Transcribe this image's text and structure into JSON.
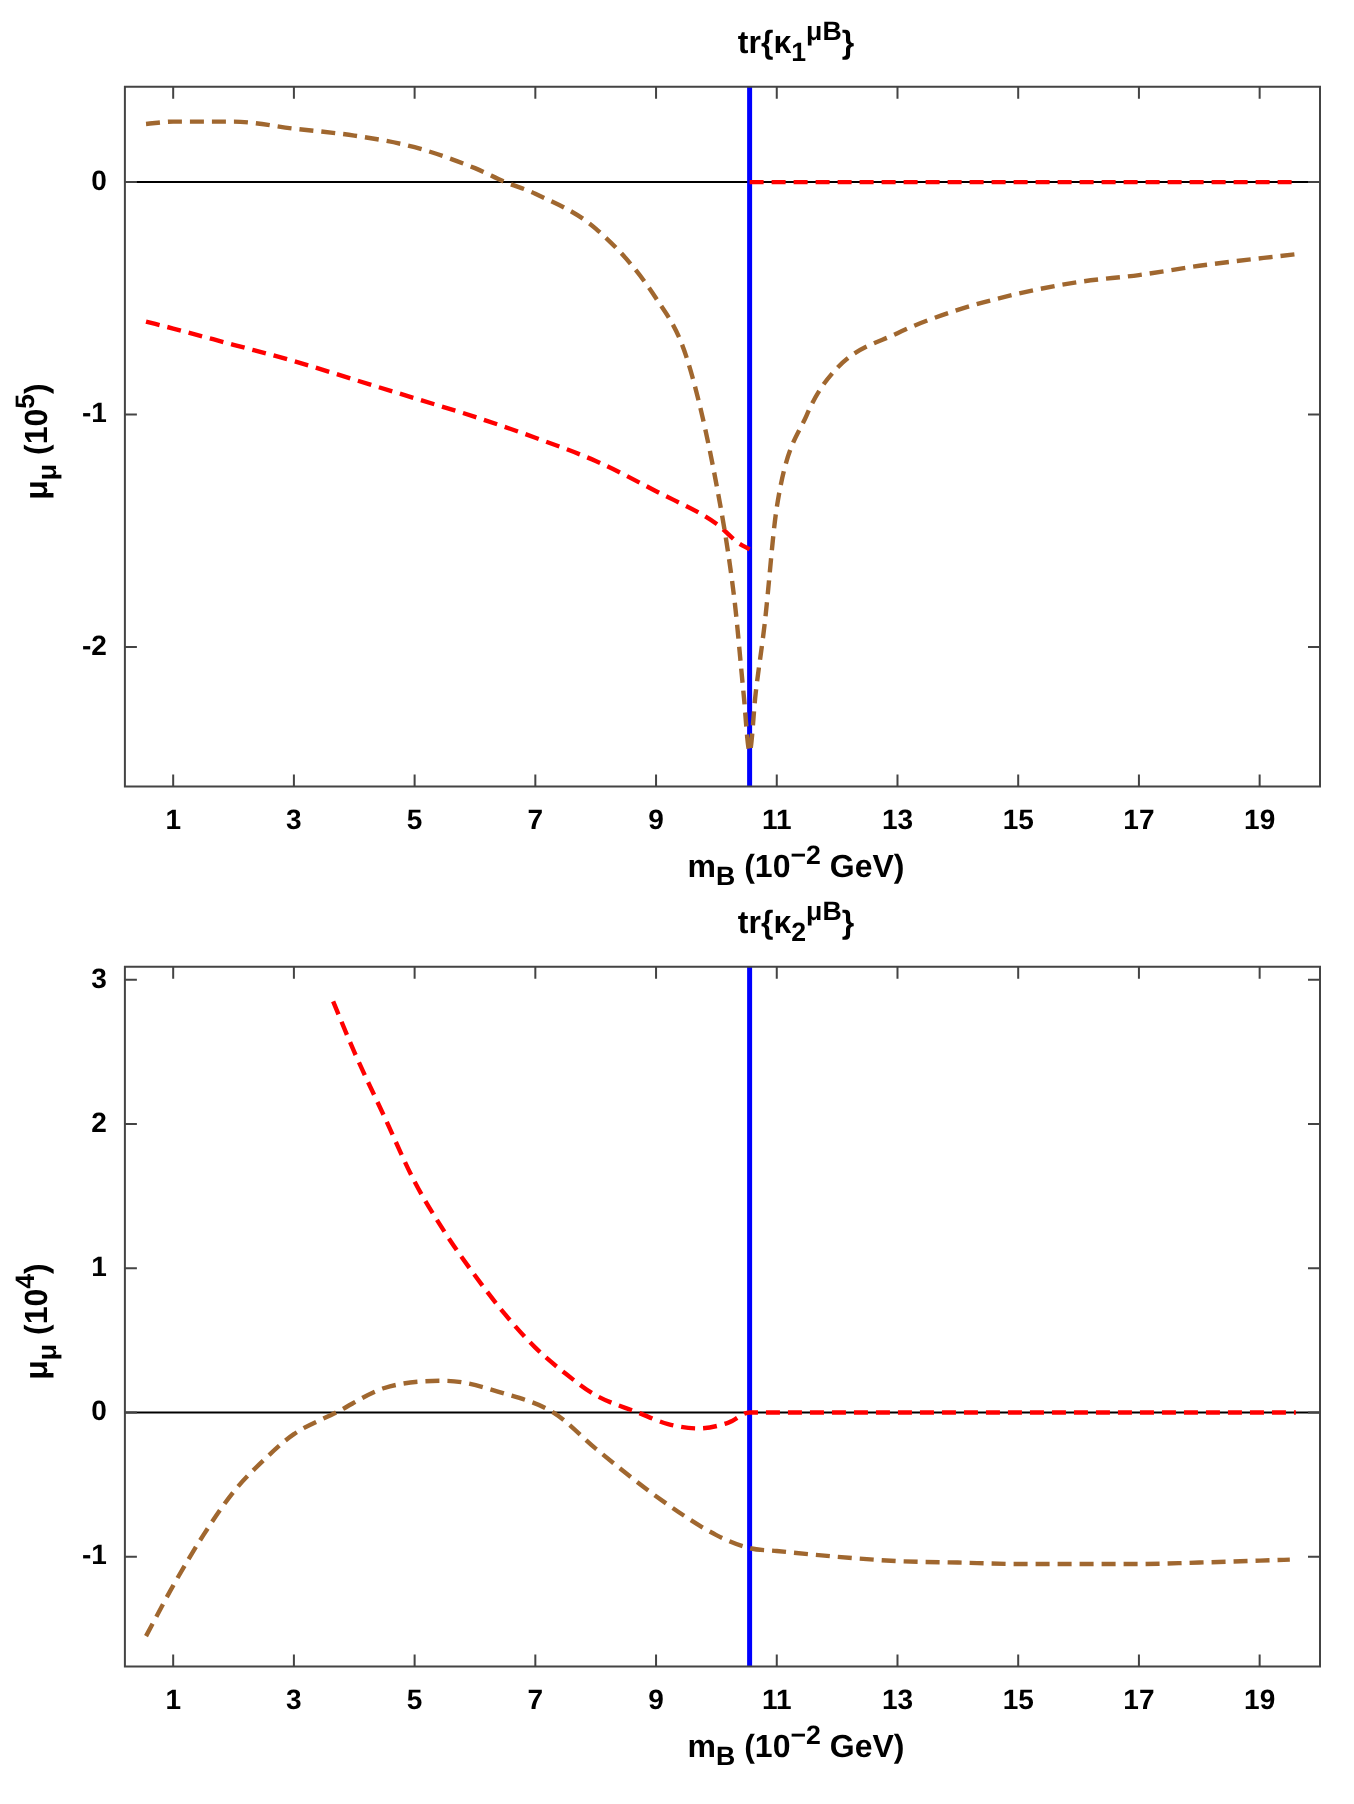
{
  "chart_data": [
    {
      "type": "line",
      "title": "tr{κ$_{1}$$^{μB}$}",
      "xlabel": "m$_{B}$ (10$^{−2}$  GeV)",
      "ylabel": "μ$_{μ}$ (10$^{5}$)",
      "xlim": [
        0.2,
        20
      ],
      "xticks": [
        1,
        3,
        5,
        7,
        9,
        11,
        13,
        15,
        17,
        19
      ],
      "ylim": [
        -2.6,
        0.41
      ],
      "yticks": [
        -2,
        -1,
        0
      ],
      "grid": false,
      "legend": false,
      "marker": "none",
      "ref_lines": [
        {
          "axis": "y",
          "value": 0,
          "color": "#000000",
          "line_style": "solid"
        },
        {
          "axis": "x",
          "value": 10.55,
          "color": "#0000ff",
          "line_style": "solid"
        }
      ],
      "series": [
        {
          "color": "#a0672f",
          "line_style": "dashed",
          "x": [
            0.55,
            1,
            1.5,
            2,
            3,
            4,
            5,
            6,
            6.5,
            7,
            8,
            9,
            9.5,
            10,
            10.3,
            10.45,
            10.55,
            10.65,
            10.8,
            11,
            11.5,
            12,
            13,
            14,
            15,
            16,
            17,
            18,
            19.6
          ],
          "values": [
            0.25,
            0.26,
            0.26,
            0.26,
            0.23,
            0.2,
            0.15,
            0.06,
            0,
            -0.05,
            -0.2,
            -0.5,
            -0.75,
            -1.3,
            -1.8,
            -2.2,
            -2.45,
            -2.2,
            -1.9,
            -1.4,
            -1.0,
            -0.8,
            -0.65,
            -0.55,
            -0.48,
            -0.43,
            -0.4,
            -0.36,
            -0.31
          ]
        },
        {
          "color": "#ff0000",
          "line_style": "dashed",
          "x": [
            0.55,
            1,
            2,
            3,
            4,
            5,
            6,
            7,
            8,
            9,
            10,
            10.35,
            10.55
          ],
          "values": [
            -0.6,
            -0.63,
            -0.7,
            -0.77,
            -0.85,
            -0.93,
            -1.01,
            -1.1,
            -1.2,
            -1.33,
            -1.47,
            -1.55,
            -1.58
          ]
        },
        {
          "color": "#ff0000",
          "line_style": "dashed",
          "x": [
            10.55,
            19.6
          ],
          "values": [
            0,
            0
          ]
        }
      ]
    },
    {
      "type": "line",
      "title": "tr{κ$_{2}$$^{μB}$}",
      "xlabel": "m$_{B}$ (10$^{−2}$  GeV)",
      "ylabel": "μ$_{μ}$ (10$^{4}$)",
      "xlim": [
        0.2,
        20
      ],
      "xticks": [
        1,
        3,
        5,
        7,
        9,
        11,
        13,
        15,
        17,
        19
      ],
      "ylim": [
        -1.76,
        3.09
      ],
      "yticks": [
        -1,
        0,
        1,
        2,
        3
      ],
      "grid": false,
      "legend": false,
      "marker": "none",
      "ref_lines": [
        {
          "axis": "y",
          "value": 0,
          "color": "#000000",
          "line_style": "solid"
        },
        {
          "axis": "x",
          "value": 10.55,
          "color": "#0000ff",
          "line_style": "solid"
        }
      ],
      "series": [
        {
          "color": "#a0672f",
          "line_style": "dashed",
          "x": [
            0.55,
            1,
            1.5,
            2,
            2.5,
            3,
            3.7,
            4.5,
            5.5,
            6.5,
            7.3,
            8,
            9,
            10,
            10.55,
            11,
            12,
            13,
            14,
            15,
            16,
            17,
            18,
            19.5
          ],
          "values": [
            -1.55,
            -1.2,
            -0.85,
            -0.55,
            -0.33,
            -0.15,
            0,
            0.17,
            0.22,
            0.13,
            0,
            -0.25,
            -0.58,
            -0.85,
            -0.94,
            -0.96,
            -1.0,
            -1.03,
            -1.04,
            -1.05,
            -1.05,
            -1.05,
            -1.04,
            -1.02
          ]
        },
        {
          "color": "#ff0000",
          "line_style": "dashed",
          "x": [
            3.65,
            4,
            4.5,
            5,
            5.5,
            6,
            6.5,
            7,
            7.5,
            8,
            8.7,
            9.2,
            9.7,
            10.2,
            10.55,
            19.6
          ],
          "values": [
            2.85,
            2.5,
            2.05,
            1.6,
            1.25,
            0.95,
            0.68,
            0.45,
            0.27,
            0.12,
            0,
            -0.08,
            -0.11,
            -0.07,
            0,
            0
          ]
        }
      ]
    }
  ]
}
